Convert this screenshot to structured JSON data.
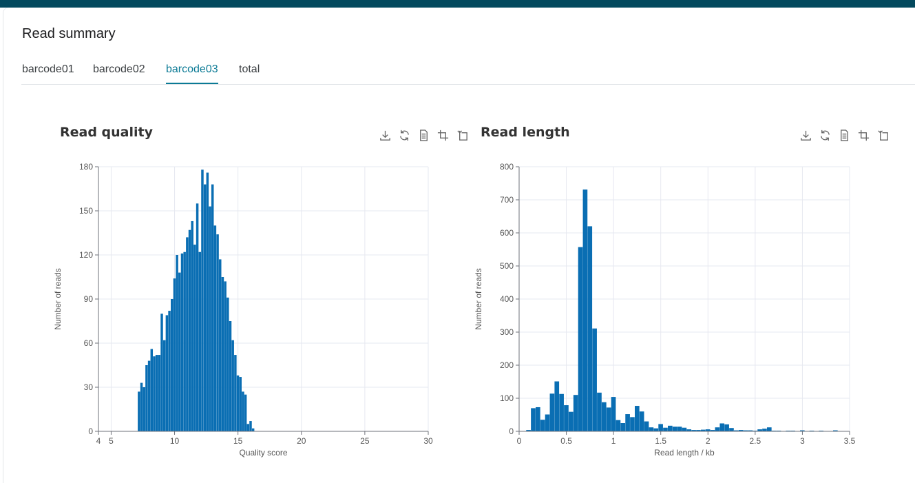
{
  "page": {
    "title": "Read summary"
  },
  "tabs": [
    {
      "label": "barcode01",
      "active": false
    },
    {
      "label": "barcode02",
      "active": false
    },
    {
      "label": "barcode03",
      "active": true
    },
    {
      "label": "total",
      "active": false
    }
  ],
  "toolbox": {
    "icons": [
      "download-icon",
      "refresh-icon",
      "data-view-icon",
      "zoom-icon",
      "zoom-reset-icon"
    ]
  },
  "colors": {
    "topbar": "#03495e",
    "accent": "#0b7a95",
    "bar": "#0a6eb3",
    "grid": "#e6e8f0"
  },
  "chart_data": [
    {
      "type": "bar",
      "title": "Read quality",
      "xlabel": "Quality score",
      "ylabel": "Number of reads",
      "xlim": [
        4,
        30
      ],
      "ylim": [
        0,
        180
      ],
      "x_ticks": [
        "4",
        "5",
        "10",
        "15",
        "20",
        "25",
        "30"
      ],
      "y_ticks": [
        "0",
        "30",
        "60",
        "90",
        "120",
        "150",
        "180"
      ],
      "x_grid": [
        5,
        10,
        15,
        20,
        25,
        30
      ],
      "y_grid": [
        30,
        60,
        90,
        120,
        150,
        180
      ],
      "bin_width": 0.2,
      "bins": [
        {
          "x": 7.2,
          "y": 27
        },
        {
          "x": 7.4,
          "y": 33
        },
        {
          "x": 7.6,
          "y": 30
        },
        {
          "x": 7.8,
          "y": 45
        },
        {
          "x": 8.0,
          "y": 48
        },
        {
          "x": 8.2,
          "y": 56
        },
        {
          "x": 8.4,
          "y": 51
        },
        {
          "x": 8.6,
          "y": 52
        },
        {
          "x": 8.8,
          "y": 52
        },
        {
          "x": 9.0,
          "y": 80
        },
        {
          "x": 9.2,
          "y": 62
        },
        {
          "x": 9.4,
          "y": 79
        },
        {
          "x": 9.6,
          "y": 82
        },
        {
          "x": 9.8,
          "y": 90
        },
        {
          "x": 10.0,
          "y": 104
        },
        {
          "x": 10.2,
          "y": 120
        },
        {
          "x": 10.4,
          "y": 108
        },
        {
          "x": 10.6,
          "y": 121
        },
        {
          "x": 10.8,
          "y": 122
        },
        {
          "x": 11.0,
          "y": 132
        },
        {
          "x": 11.2,
          "y": 137
        },
        {
          "x": 11.4,
          "y": 143
        },
        {
          "x": 11.6,
          "y": 127
        },
        {
          "x": 11.8,
          "y": 155
        },
        {
          "x": 12.0,
          "y": 122
        },
        {
          "x": 12.2,
          "y": 178
        },
        {
          "x": 12.4,
          "y": 168
        },
        {
          "x": 12.6,
          "y": 176
        },
        {
          "x": 12.8,
          "y": 153
        },
        {
          "x": 13.0,
          "y": 168
        },
        {
          "x": 13.2,
          "y": 140
        },
        {
          "x": 13.4,
          "y": 134
        },
        {
          "x": 13.6,
          "y": 117
        },
        {
          "x": 13.8,
          "y": 105
        },
        {
          "x": 14.0,
          "y": 102
        },
        {
          "x": 14.2,
          "y": 91
        },
        {
          "x": 14.4,
          "y": 75
        },
        {
          "x": 14.6,
          "y": 62
        },
        {
          "x": 14.8,
          "y": 52
        },
        {
          "x": 15.0,
          "y": 38
        },
        {
          "x": 15.2,
          "y": 37
        },
        {
          "x": 15.4,
          "y": 27
        },
        {
          "x": 15.6,
          "y": 25
        },
        {
          "x": 15.8,
          "y": 5
        },
        {
          "x": 16.0,
          "y": 7
        },
        {
          "x": 16.2,
          "y": 2
        }
      ]
    },
    {
      "type": "bar",
      "title": "Read length",
      "xlabel": "Read length / kb",
      "ylabel": "Number of reads",
      "xlim": [
        0,
        3.5
      ],
      "ylim": [
        0,
        800
      ],
      "x_ticks": [
        "0",
        "0.5",
        "1",
        "1.5",
        "2",
        "2.5",
        "3",
        "3.5"
      ],
      "y_ticks": [
        "0",
        "100",
        "200",
        "300",
        "400",
        "500",
        "600",
        "700",
        "800"
      ],
      "x_grid": [
        0.5,
        1,
        1.5,
        2,
        2.5,
        3,
        3.5
      ],
      "y_grid": [
        100,
        200,
        300,
        400,
        500,
        600,
        700,
        800
      ],
      "bin_width": 0.05,
      "bins": [
        {
          "x": 0.05,
          "y": 1
        },
        {
          "x": 0.1,
          "y": 4
        },
        {
          "x": 0.15,
          "y": 70
        },
        {
          "x": 0.2,
          "y": 73
        },
        {
          "x": 0.25,
          "y": 35
        },
        {
          "x": 0.3,
          "y": 51
        },
        {
          "x": 0.35,
          "y": 114
        },
        {
          "x": 0.4,
          "y": 151
        },
        {
          "x": 0.45,
          "y": 113
        },
        {
          "x": 0.5,
          "y": 79
        },
        {
          "x": 0.55,
          "y": 59
        },
        {
          "x": 0.6,
          "y": 110
        },
        {
          "x": 0.65,
          "y": 557
        },
        {
          "x": 0.7,
          "y": 731
        },
        {
          "x": 0.75,
          "y": 620
        },
        {
          "x": 0.8,
          "y": 311
        },
        {
          "x": 0.85,
          "y": 117
        },
        {
          "x": 0.9,
          "y": 88
        },
        {
          "x": 0.95,
          "y": 72
        },
        {
          "x": 1.0,
          "y": 104
        },
        {
          "x": 1.05,
          "y": 34
        },
        {
          "x": 1.1,
          "y": 25
        },
        {
          "x": 1.15,
          "y": 52
        },
        {
          "x": 1.2,
          "y": 43
        },
        {
          "x": 1.25,
          "y": 77
        },
        {
          "x": 1.3,
          "y": 60
        },
        {
          "x": 1.35,
          "y": 30
        },
        {
          "x": 1.4,
          "y": 12
        },
        {
          "x": 1.45,
          "y": 9
        },
        {
          "x": 1.5,
          "y": 22
        },
        {
          "x": 1.55,
          "y": 11
        },
        {
          "x": 1.6,
          "y": 17
        },
        {
          "x": 1.65,
          "y": 14
        },
        {
          "x": 1.7,
          "y": 14
        },
        {
          "x": 1.75,
          "y": 11
        },
        {
          "x": 1.8,
          "y": 6
        },
        {
          "x": 1.85,
          "y": 4
        },
        {
          "x": 1.9,
          "y": 4
        },
        {
          "x": 1.95,
          "y": 5
        },
        {
          "x": 2.0,
          "y": 6
        },
        {
          "x": 2.05,
          "y": 4
        },
        {
          "x": 2.1,
          "y": 12
        },
        {
          "x": 2.15,
          "y": 24
        },
        {
          "x": 2.2,
          "y": 21
        },
        {
          "x": 2.25,
          "y": 10
        },
        {
          "x": 2.3,
          "y": 3
        },
        {
          "x": 2.35,
          "y": 4
        },
        {
          "x": 2.4,
          "y": 3
        },
        {
          "x": 2.45,
          "y": 3
        },
        {
          "x": 2.5,
          "y": 2
        },
        {
          "x": 2.55,
          "y": 6
        },
        {
          "x": 2.6,
          "y": 8
        },
        {
          "x": 2.65,
          "y": 12
        },
        {
          "x": 2.7,
          "y": 2
        },
        {
          "x": 2.75,
          "y": 2
        },
        {
          "x": 2.8,
          "y": 1
        },
        {
          "x": 2.85,
          "y": 2
        },
        {
          "x": 2.9,
          "y": 2
        },
        {
          "x": 2.95,
          "y": 1
        },
        {
          "x": 3.0,
          "y": 3
        },
        {
          "x": 3.05,
          "y": 1
        },
        {
          "x": 3.1,
          "y": 2
        },
        {
          "x": 3.15,
          "y": 1
        },
        {
          "x": 3.2,
          "y": 2
        },
        {
          "x": 3.25,
          "y": 1
        },
        {
          "x": 3.3,
          "y": 1
        },
        {
          "x": 3.35,
          "y": 3
        },
        {
          "x": 3.4,
          "y": 1
        }
      ]
    }
  ]
}
